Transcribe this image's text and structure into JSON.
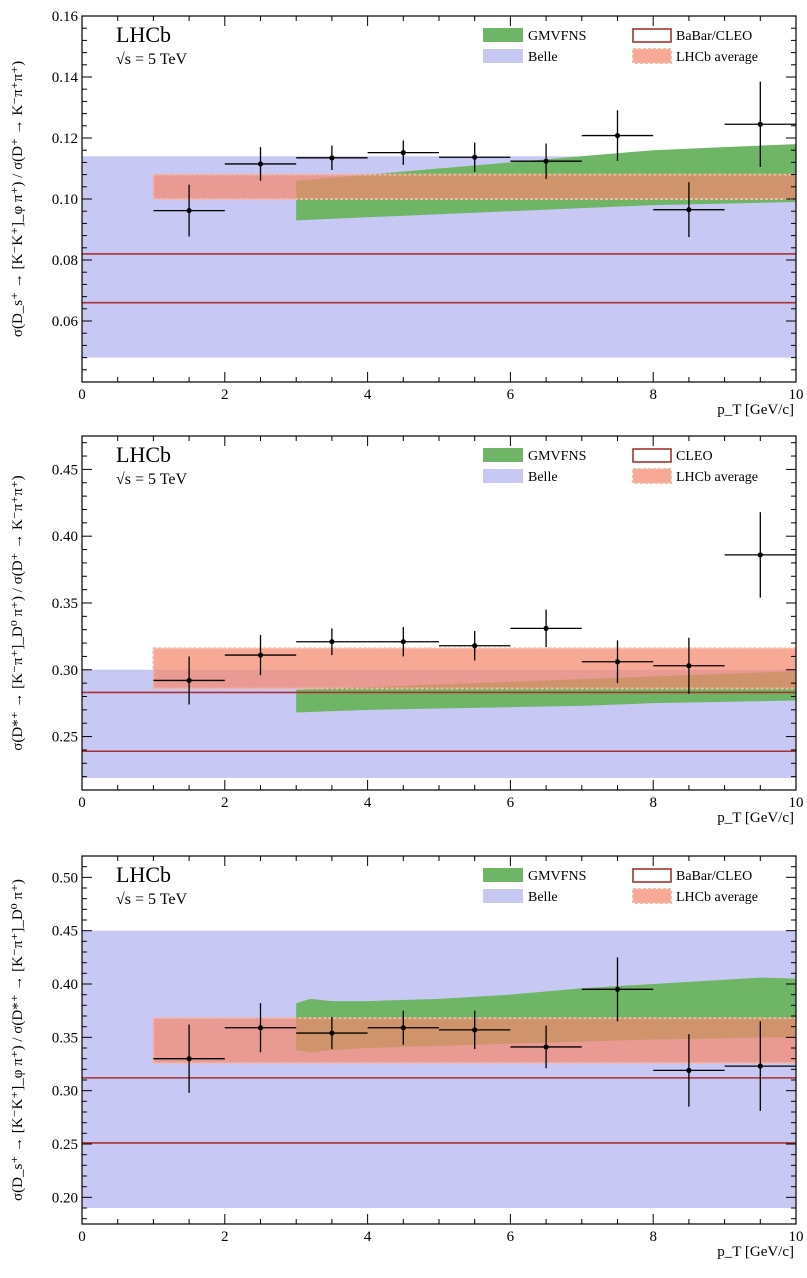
{
  "experiment": "LHCb",
  "energy": "√s = 5 TeV",
  "x_axis": {
    "label": "p_T [GeV/c]",
    "range": [
      0,
      10
    ],
    "ticks": [
      0,
      2,
      4,
      6,
      8,
      10
    ]
  },
  "legend": {
    "gmvfns": "GMVFNS",
    "belle": "Belle",
    "lhcb_avg": "LHCb average"
  },
  "colors": {
    "gmvfns": "#6fb566",
    "belle": "#c8c8f5",
    "lhcb_avg": "#f4886e",
    "lhcb_avg_edge": "#f7b6a0",
    "ref_lines": "#a83232",
    "points": "#000000"
  },
  "chart_data": [
    {
      "type": "scatter",
      "ylabel": "σ(D_s⁺ → [K⁻K⁺]_φ π⁺) / σ(D⁺ → K⁻π⁺π⁺)",
      "ylim": [
        0.04,
        0.16
      ],
      "yticks": [
        0.06,
        0.08,
        0.1,
        0.12,
        0.14,
        0.16
      ],
      "ytick_labels": [
        "0.06",
        "0.08",
        "0.10",
        "0.12",
        "0.14",
        "0.16"
      ],
      "ref_label": "BaBar/CLEO",
      "ref_band": [
        0.066,
        0.082
      ],
      "belle_band": [
        0.048,
        0.114
      ],
      "lhcb_avg_band": {
        "x": [
          1,
          10
        ],
        "y": [
          0.1,
          0.108
        ]
      },
      "gmvfns": {
        "x": [
          3,
          4,
          5,
          6,
          7,
          8,
          9,
          10
        ],
        "low": [
          0.093,
          0.094,
          0.095,
          0.096,
          0.097,
          0.098,
          0.0985,
          0.099
        ],
        "high": [
          0.106,
          0.108,
          0.11,
          0.112,
          0.114,
          0.116,
          0.117,
          0.118
        ]
      },
      "points": [
        {
          "x": 1.5,
          "y": 0.0962,
          "xerr": 0.5,
          "yerr": 0.0085
        },
        {
          "x": 2.5,
          "y": 0.1115,
          "xerr": 0.5,
          "yerr": 0.0055
        },
        {
          "x": 3.5,
          "y": 0.1135,
          "xerr": 0.5,
          "yerr": 0.004
        },
        {
          "x": 4.5,
          "y": 0.1152,
          "xerr": 0.5,
          "yerr": 0.004
        },
        {
          "x": 5.5,
          "y": 0.1137,
          "xerr": 0.5,
          "yerr": 0.0048
        },
        {
          "x": 6.5,
          "y": 0.1124,
          "xerr": 0.5,
          "yerr": 0.0058
        },
        {
          "x": 7.5,
          "y": 0.1208,
          "xerr": 0.5,
          "yerr": 0.0083
        },
        {
          "x": 8.5,
          "y": 0.0965,
          "xerr": 0.5,
          "yerr": 0.009
        },
        {
          "x": 9.5,
          "y": 0.1245,
          "xerr": 0.5,
          "yerr": 0.014
        }
      ]
    },
    {
      "type": "scatter",
      "ylabel": "σ(D*⁺ → [K⁻π⁺]_D⁰ π⁺) / σ(D⁺ → K⁻π⁺π⁺)",
      "ylim": [
        0.21,
        0.475
      ],
      "yticks": [
        0.25,
        0.3,
        0.35,
        0.4,
        0.45
      ],
      "ytick_labels": [
        "0.25",
        "0.30",
        "0.35",
        "0.40",
        "0.45"
      ],
      "ref_label": "CLEO",
      "ref_band": [
        0.239,
        0.283
      ],
      "belle_band": [
        0.219,
        0.3
      ],
      "lhcb_avg_band": {
        "x": [
          1,
          10
        ],
        "y": [
          0.286,
          0.316
        ]
      },
      "gmvfns": {
        "x": [
          3,
          4,
          5,
          6,
          7,
          8,
          9,
          10
        ],
        "low": [
          0.268,
          0.27,
          0.271,
          0.272,
          0.273,
          0.275,
          0.276,
          0.277
        ],
        "high": [
          0.285,
          0.287,
          0.289,
          0.291,
          0.293,
          0.295,
          0.297,
          0.299
        ]
      },
      "points": [
        {
          "x": 1.5,
          "y": 0.292,
          "xerr": 0.5,
          "yerr": 0.018
        },
        {
          "x": 2.5,
          "y": 0.311,
          "xerr": 0.5,
          "yerr": 0.015
        },
        {
          "x": 3.5,
          "y": 0.321,
          "xerr": 0.5,
          "yerr": 0.01
        },
        {
          "x": 4.5,
          "y": 0.321,
          "xerr": 0.5,
          "yerr": 0.011
        },
        {
          "x": 5.5,
          "y": 0.318,
          "xerr": 0.5,
          "yerr": 0.011
        },
        {
          "x": 6.5,
          "y": 0.331,
          "xerr": 0.5,
          "yerr": 0.014
        },
        {
          "x": 7.5,
          "y": 0.306,
          "xerr": 0.5,
          "yerr": 0.016
        },
        {
          "x": 8.5,
          "y": 0.303,
          "xerr": 0.5,
          "yerr": 0.021
        },
        {
          "x": 9.5,
          "y": 0.386,
          "xerr": 0.5,
          "yerr": 0.032
        }
      ]
    },
    {
      "type": "scatter",
      "ylabel": "σ(D_s⁺ → [K⁻K⁺]_φ π⁺) / σ(D*⁺ → [K⁻π⁺]_D⁰ π⁺)",
      "ylim": [
        0.175,
        0.52
      ],
      "yticks": [
        0.2,
        0.25,
        0.3,
        0.35,
        0.4,
        0.45,
        0.5
      ],
      "ytick_labels": [
        "0.20",
        "0.25",
        "0.30",
        "0.35",
        "0.40",
        "0.45",
        "0.50"
      ],
      "ref_label": "BaBar/CLEO",
      "ref_band": [
        0.251,
        0.312
      ],
      "belle_band": [
        0.19,
        0.45
      ],
      "lhcb_avg_band": {
        "x": [
          1,
          10
        ],
        "y": [
          0.326,
          0.368
        ]
      },
      "gmvfns": {
        "x": [
          3,
          3.2,
          3.5,
          4,
          5,
          6,
          7,
          8,
          9,
          9.5,
          10
        ],
        "low": [
          0.338,
          0.336,
          0.338,
          0.34,
          0.342,
          0.344,
          0.346,
          0.348,
          0.349,
          0.35,
          0.35
        ],
        "high": [
          0.382,
          0.386,
          0.384,
          0.384,
          0.386,
          0.39,
          0.396,
          0.4,
          0.404,
          0.406,
          0.405
        ]
      },
      "points": [
        {
          "x": 1.5,
          "y": 0.33,
          "xerr": 0.5,
          "yerr": 0.032
        },
        {
          "x": 2.5,
          "y": 0.359,
          "xerr": 0.5,
          "yerr": 0.023
        },
        {
          "x": 3.5,
          "y": 0.354,
          "xerr": 0.5,
          "yerr": 0.015
        },
        {
          "x": 4.5,
          "y": 0.359,
          "xerr": 0.5,
          "yerr": 0.016
        },
        {
          "x": 5.5,
          "y": 0.357,
          "xerr": 0.5,
          "yerr": 0.018
        },
        {
          "x": 6.5,
          "y": 0.341,
          "xerr": 0.5,
          "yerr": 0.02
        },
        {
          "x": 7.5,
          "y": 0.395,
          "xerr": 0.5,
          "yerr": 0.03
        },
        {
          "x": 8.5,
          "y": 0.319,
          "xerr": 0.5,
          "yerr": 0.034
        },
        {
          "x": 9.5,
          "y": 0.323,
          "xerr": 0.5,
          "yerr": 0.042
        }
      ]
    }
  ]
}
